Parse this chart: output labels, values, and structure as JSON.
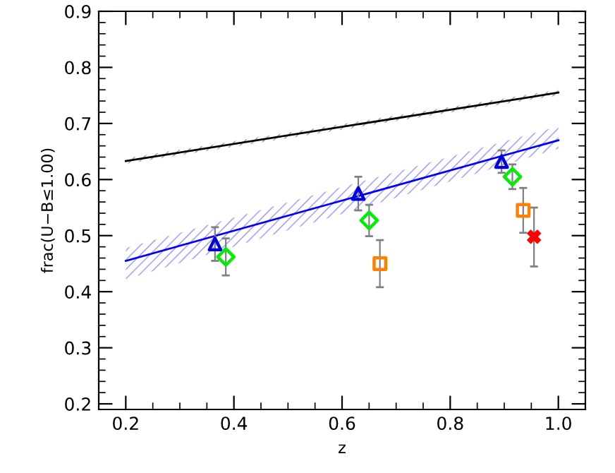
{
  "chart_data": {
    "type": "scatter",
    "xlabel": "z",
    "ylabel": "frac(U−B≤1.00)",
    "xlim": [
      0.15,
      1.05
    ],
    "ylim": [
      0.19,
      0.9
    ],
    "xticks": [
      0.2,
      0.4,
      0.6,
      0.8,
      {
        "value": 1.0,
        "label": "1.0"
      }
    ],
    "yticks": [
      0.2,
      0.3,
      0.4,
      0.5,
      0.6,
      0.7,
      0.8,
      0.9
    ],
    "grid": false,
    "series": [
      {
        "type": "line",
        "color": "#000000",
        "x": [
          0.2,
          1.0
        ],
        "values": [
          0.633,
          0.755
        ],
        "lower": [
          0.628,
          0.75
        ],
        "upper": [
          0.638,
          0.76
        ],
        "marker": "none",
        "line_style": "solid"
      },
      {
        "type": "line",
        "color": "#0000ff",
        "x": [
          0.2,
          1.0
        ],
        "values": [
          0.455,
          0.67
        ],
        "lower": [
          0.422,
          0.655
        ],
        "upper": [
          0.478,
          0.695
        ],
        "marker": "none",
        "line_style": "solid"
      },
      {
        "color": "#0000dd",
        "x": [
          0.365,
          0.63,
          0.895
        ],
        "values": [
          0.485,
          0.575,
          0.632
        ],
        "errors": [
          0.03,
          0.03,
          0.02
        ],
        "marker": "triangle"
      },
      {
        "color": "#00ee00",
        "x": [
          0.385,
          0.65,
          0.915
        ],
        "values": [
          0.462,
          0.527,
          0.605
        ],
        "errors": [
          0.033,
          0.028,
          0.022
        ],
        "marker": "diamond"
      },
      {
        "color": "#ff8000",
        "x": [
          0.67,
          0.935
        ],
        "values": [
          0.45,
          0.545
        ],
        "errors": [
          [
            0.408,
            0.492
          ],
          [
            0.505,
            0.585
          ]
        ],
        "marker": "square"
      },
      {
        "color": "#ff0000",
        "x": [
          0.955
        ],
        "values": [
          0.498
        ],
        "errors": [
          [
            0.445,
            0.55
          ]
        ],
        "marker": "cross"
      }
    ]
  }
}
